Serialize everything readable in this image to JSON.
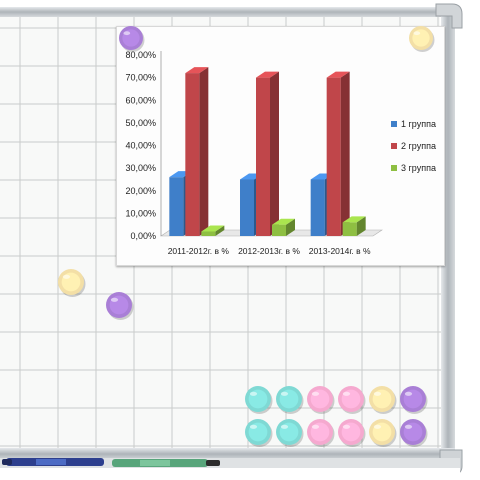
{
  "scene": {
    "board_color": "#f8f9f8",
    "grid_color": "#c9cccb",
    "frame_color": "#b9bec2",
    "magnet_colors": {
      "purple": "#a97fd6",
      "yellow": "#f3dfa6",
      "teal": "#7fd9d4",
      "pink": "#f5a9cf"
    }
  },
  "chart_data": {
    "type": "bar",
    "categories": [
      "2011-2012г. в %",
      "2012-2013г. в %",
      "2013-2014г. в %"
    ],
    "series": [
      {
        "name": "1 группа",
        "color": "#3f7fc9",
        "values": [
          26,
          25,
          25
        ]
      },
      {
        "name": "2 группа",
        "color": "#c0464a",
        "values": [
          72,
          70,
          70
        ]
      },
      {
        "name": "3 группа",
        "color": "#8ebf42",
        "values": [
          2,
          5,
          6
        ]
      }
    ],
    "y_ticks": [
      "0,00%",
      "10,00%",
      "20,00%",
      "30,00%",
      "40,00%",
      "50,00%",
      "60,00%",
      "70,00%",
      "80,00%"
    ],
    "ylim": [
      0,
      80
    ],
    "legend_position": "right",
    "grid": false,
    "style": "3d-columns"
  }
}
